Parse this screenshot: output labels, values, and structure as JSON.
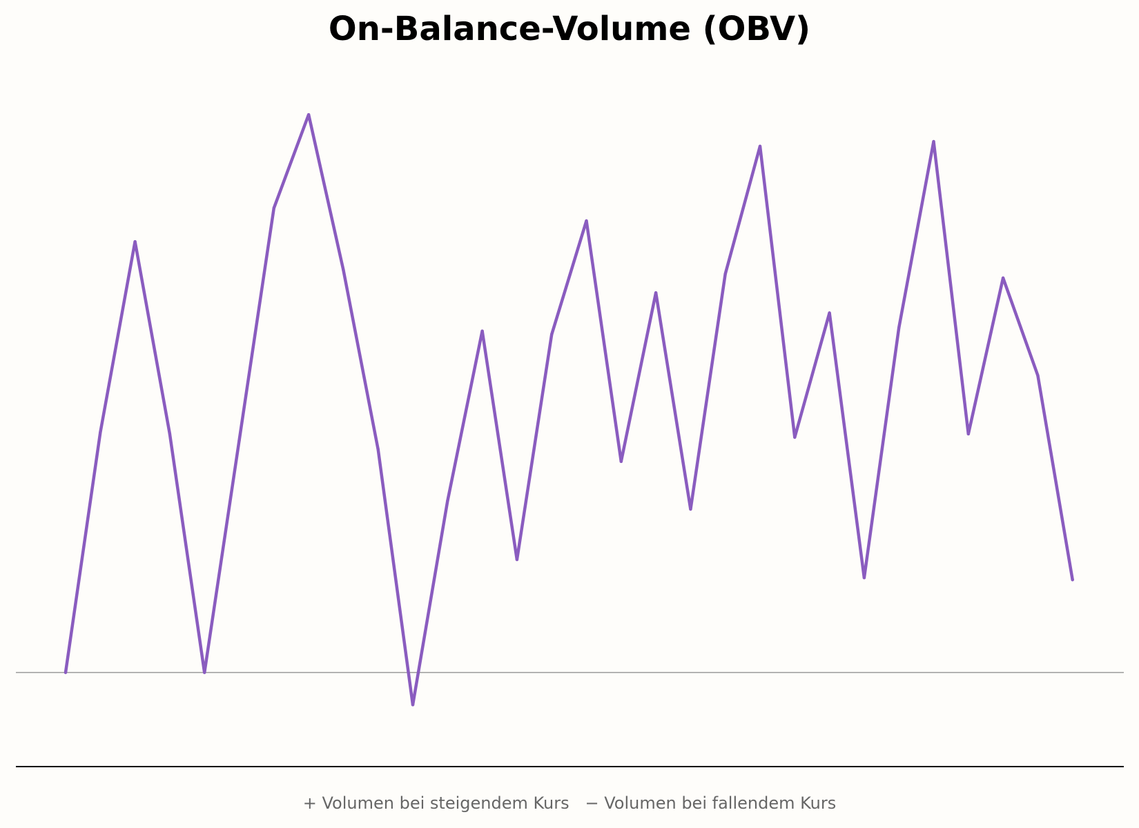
{
  "chart_data": {
    "type": "line",
    "title": "On-Balance-Volume (OBV)",
    "caption": "+ Volumen bei steigendem Kurs   − Volumen bei fallendem Kurs",
    "xlabel": "",
    "ylabel": "",
    "x": [
      0,
      1,
      2,
      3,
      4,
      5,
      6,
      7,
      8,
      9,
      10,
      11,
      12,
      13,
      14,
      15,
      16,
      17,
      18,
      19,
      20,
      21,
      22,
      23,
      24,
      25,
      26,
      27,
      28,
      29
    ],
    "series": [
      {
        "values": [
          0,
          357,
          641,
          355,
          0,
          345,
          691,
          830,
          599,
          332,
          -48,
          255,
          508,
          168,
          503,
          672,
          314,
          565,
          243,
          593,
          783,
          350,
          535,
          141,
          513,
          790,
          355,
          587,
          442,
          138
        ]
      }
    ],
    "ylim": [
      -140,
      940
    ],
    "zero_line": true,
    "grid": false,
    "colors": {
      "line": "#8a5cbf",
      "zero_line": "#999999",
      "baseline_axis": "#000000",
      "background": "#fefdfa"
    }
  }
}
